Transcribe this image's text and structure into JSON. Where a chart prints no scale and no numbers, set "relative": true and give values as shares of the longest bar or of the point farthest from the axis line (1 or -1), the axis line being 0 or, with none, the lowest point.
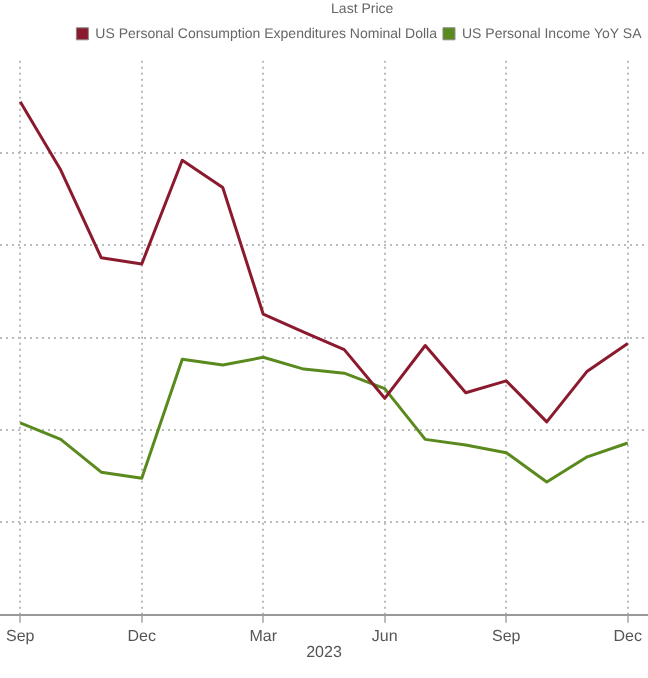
{
  "chart_data": {
    "type": "line",
    "relative": true,
    "categories": [
      "Sep",
      null,
      null,
      "Dec",
      null,
      null,
      "Mar",
      null,
      null,
      "Jun",
      null,
      null,
      "Sep",
      null,
      null,
      "Dec"
    ],
    "series": [
      {
        "name": "US Personal Consumption Expenditures Nominal Dolla",
        "color": "#8b1a2e",
        "values": [
          1,
          0.867,
          0.696,
          0.684,
          0.886,
          0.833,
          0.586,
          0.551,
          0.517,
          0.422,
          0.525,
          0.433,
          0.456,
          0.376,
          0.475,
          0.529
        ]
      },
      {
        "name": "US Personal Income YoY SA",
        "color": "#5a8a1e",
        "values": [
          0.374,
          0.342,
          0.278,
          0.266,
          0.498,
          0.487,
          0.502,
          0.479,
          0.471,
          0.441,
          0.342,
          0.331,
          0.316,
          0.259,
          0.308,
          0.335
        ]
      }
    ],
    "legend_title": "Last Price",
    "legend": "top right",
    "grid": true,
    "marker": "none",
    "line_style": "solid",
    "annotations": [
      "2023"
    ]
  }
}
